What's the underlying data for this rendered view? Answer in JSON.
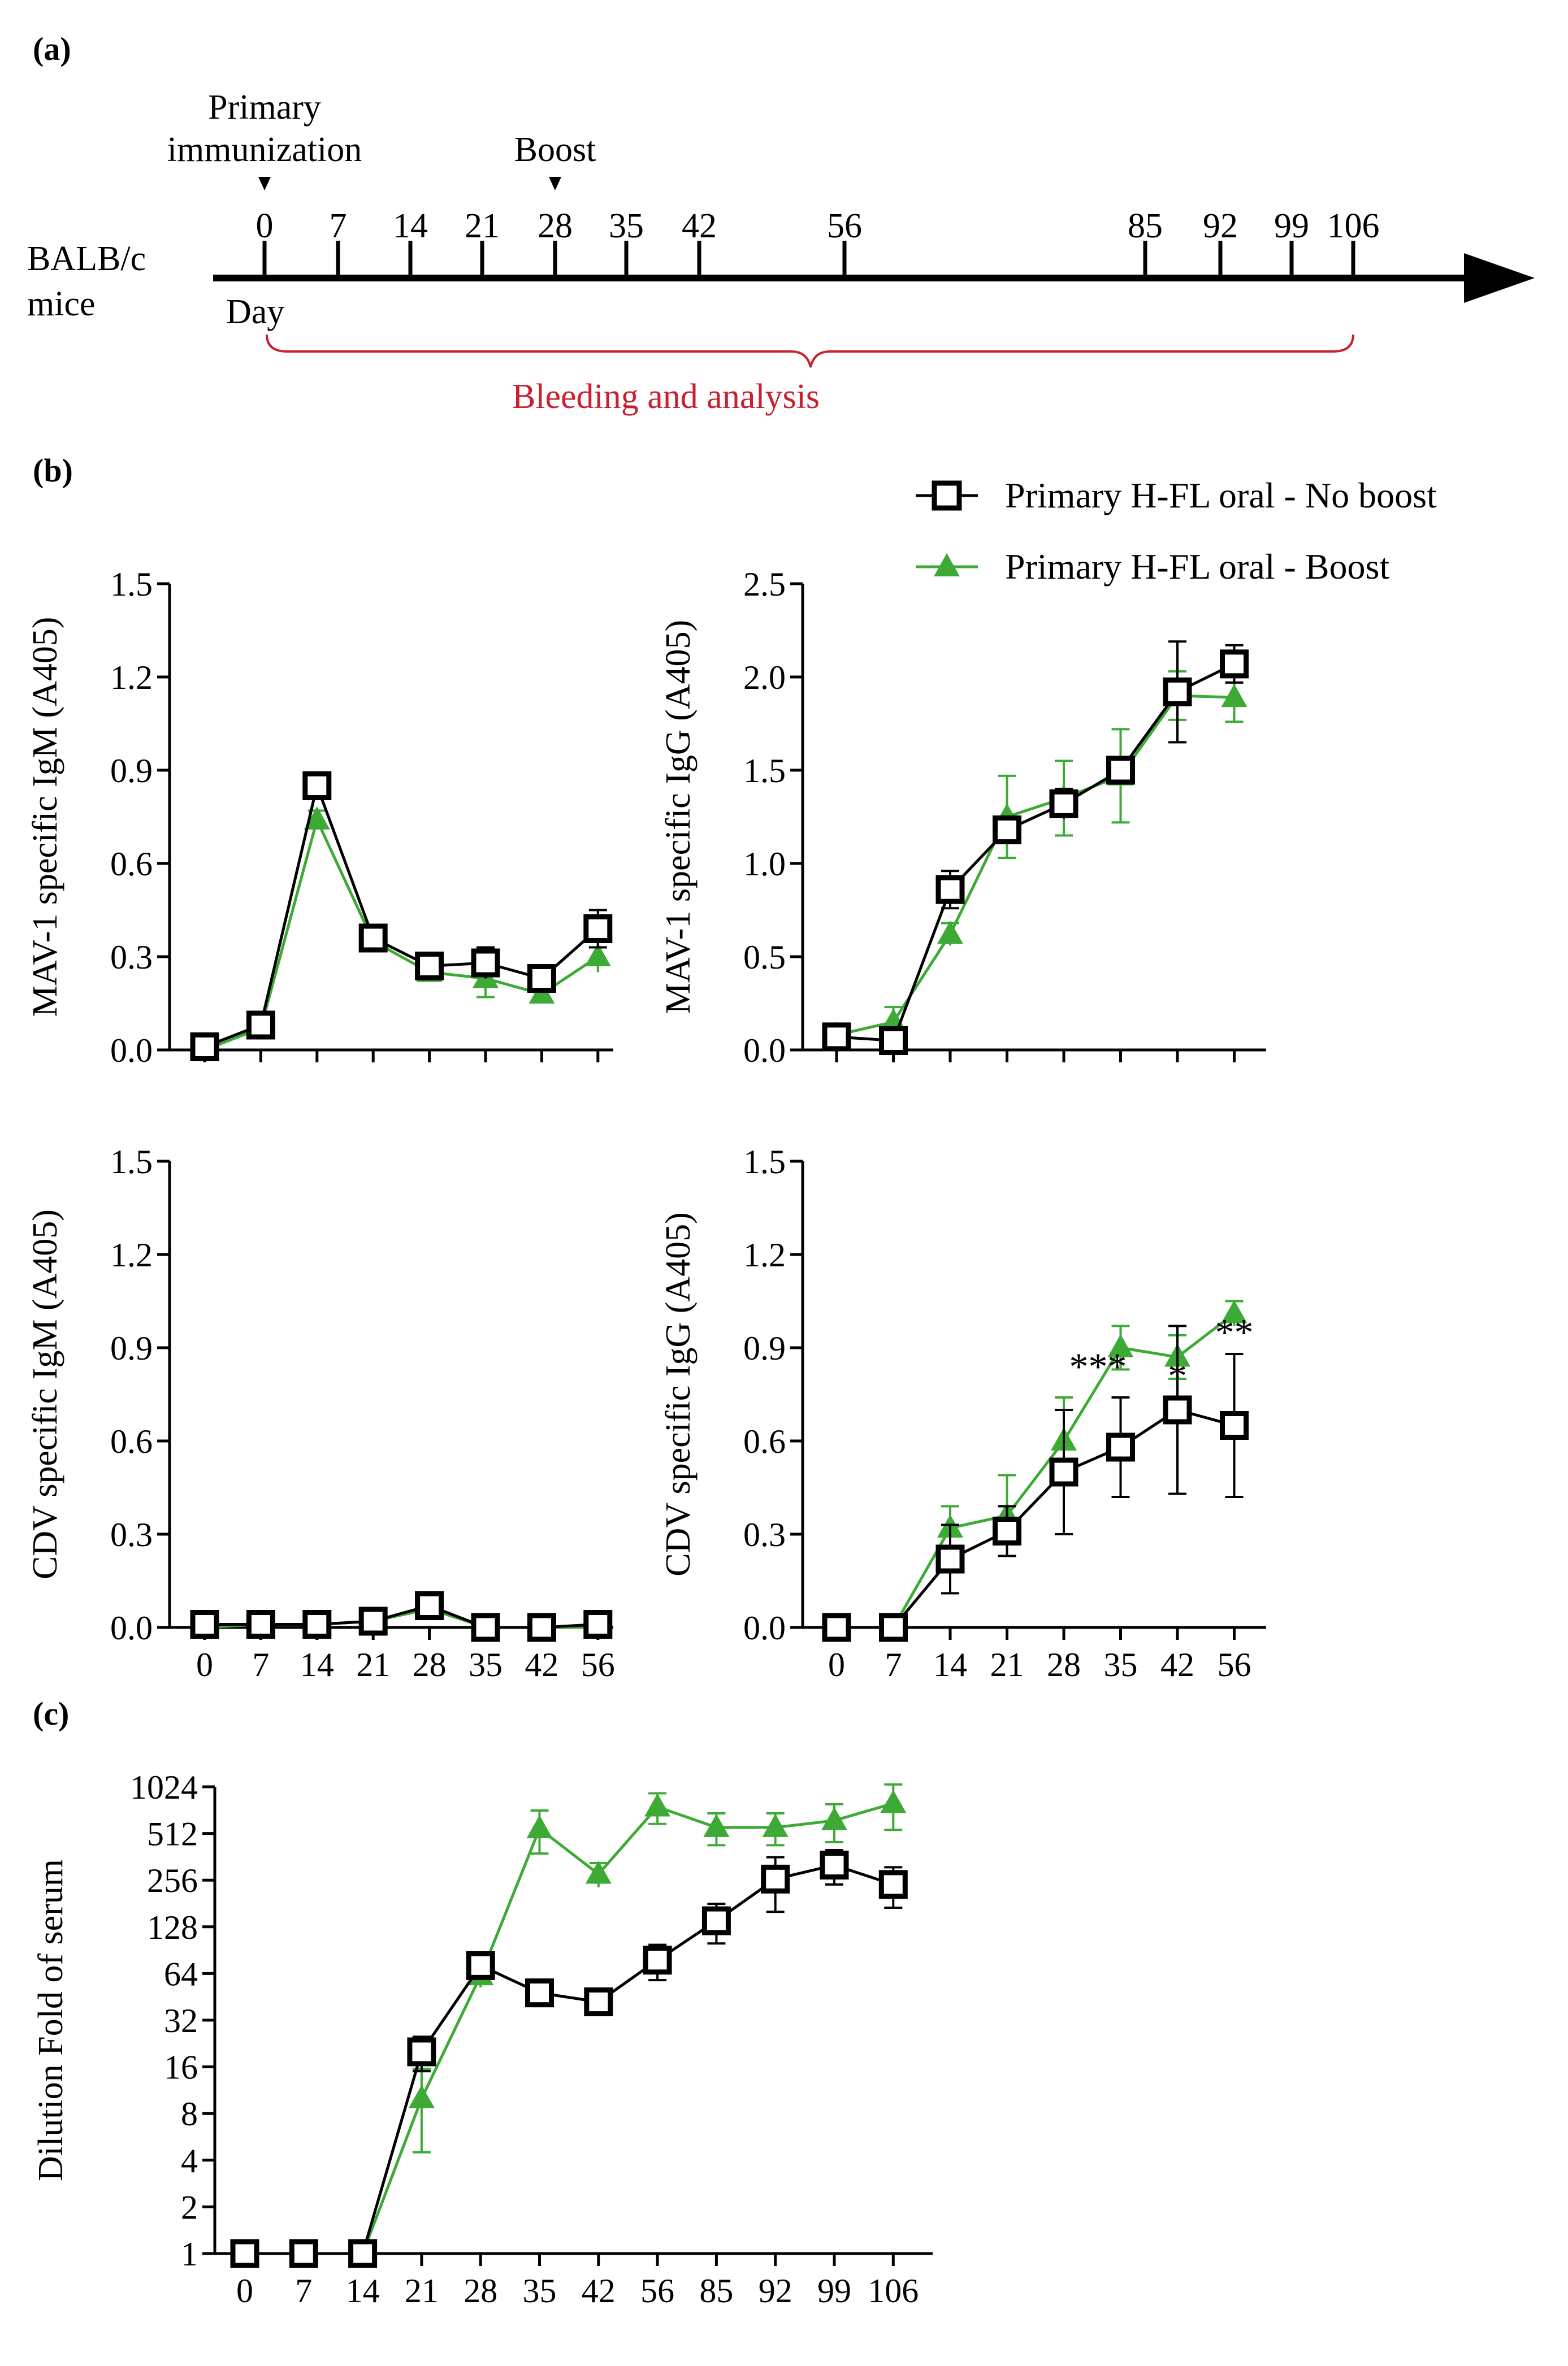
{
  "colors": {
    "no_boost": "#000000",
    "boost": "#3DAA35",
    "bracket": "#C8202E",
    "axis": "#000000"
  },
  "panel_labels": {
    "a": "(a)",
    "b": "(b)",
    "c": "(c)"
  },
  "timeline": {
    "subject_line1": "BALB/c",
    "subject_line2": "mice",
    "day_label": "Day",
    "primary_line1": "Primary",
    "primary_line2": "immunization",
    "boost_label": "Boost",
    "bleed_label": "Bleeding and analysis",
    "days": [
      0,
      7,
      14,
      21,
      28,
      35,
      42,
      56,
      85,
      92,
      99,
      106
    ]
  },
  "legend": {
    "no_boost": "Primary H-FL oral - No boost",
    "boost": "Primary H-FL oral - Boost"
  },
  "chart_data": [
    {
      "id": "mav-igm",
      "type": "line",
      "ylabel": "MAV-1 specific IgM (A405)",
      "categories": [
        "0",
        "7",
        "14",
        "21",
        "28",
        "35",
        "42",
        "56"
      ],
      "ylim": [
        0,
        1.5
      ],
      "yticks": [
        "0.0",
        "0.3",
        "0.6",
        "0.9",
        "1.2",
        "1.5"
      ],
      "show_xlabels": false,
      "series": [
        {
          "name": "Primary H-FL oral - No boost",
          "values": [
            0.01,
            0.08,
            0.85,
            0.36,
            0.27,
            0.28,
            0.23,
            0.39
          ],
          "errors": [
            0.01,
            0.04,
            0.04,
            0.03,
            0.04,
            0.05,
            0.03,
            0.06
          ]
        },
        {
          "name": "Primary H-FL oral - Boost",
          "values": [
            0.0,
            0.07,
            0.74,
            0.35,
            0.25,
            0.23,
            0.18,
            0.3
          ],
          "errors": [
            0.0,
            0.03,
            0.03,
            0.03,
            0.03,
            0.06,
            0.02,
            0.05
          ]
        }
      ]
    },
    {
      "id": "mav-igg",
      "type": "line",
      "ylabel": "MAV-1 specific IgG (A405)",
      "categories": [
        "0",
        "7",
        "14",
        "21",
        "28",
        "35",
        "42",
        "56"
      ],
      "ylim": [
        0,
        2.5
      ],
      "yticks": [
        "0.0",
        "0.5",
        "1.0",
        "1.5",
        "2.0",
        "2.5"
      ],
      "show_xlabels": false,
      "series": [
        {
          "name": "Primary H-FL oral - No boost",
          "values": [
            0.07,
            0.05,
            0.86,
            1.18,
            1.32,
            1.5,
            1.92,
            2.07
          ],
          "errors": [
            0.02,
            0.02,
            0.1,
            0.06,
            0.08,
            0.05,
            0.27,
            0.1
          ]
        },
        {
          "name": "Primary H-FL oral - Boost",
          "values": [
            0.08,
            0.15,
            0.62,
            1.25,
            1.35,
            1.47,
            1.9,
            1.89
          ],
          "errors": [
            0.02,
            0.08,
            0.06,
            0.22,
            0.2,
            0.25,
            0.13,
            0.13
          ]
        }
      ]
    },
    {
      "id": "cdv-igm",
      "type": "line",
      "ylabel": "CDV specific IgM (A405)",
      "categories": [
        "0",
        "7",
        "14",
        "21",
        "28",
        "35",
        "42",
        "56"
      ],
      "ylim": [
        0,
        1.5
      ],
      "yticks": [
        "0.0",
        "0.3",
        "0.6",
        "0.9",
        "1.2",
        "1.5"
      ],
      "show_xlabels": true,
      "series": [
        {
          "name": "Primary H-FL oral - No boost",
          "values": [
            0.01,
            0.01,
            0.01,
            0.02,
            0.07,
            0.0,
            0.0,
            0.01
          ],
          "errors": [
            0.0,
            0.0,
            0.01,
            0.01,
            0.04,
            0.0,
            0.0,
            0.01
          ]
        },
        {
          "name": "Primary H-FL oral - Boost",
          "values": [
            0.0,
            0.01,
            0.01,
            0.02,
            0.06,
            0.0,
            0.0,
            0.0
          ],
          "errors": [
            0.0,
            0.0,
            0.01,
            0.01,
            0.03,
            0.0,
            0.0,
            0.0
          ]
        }
      ]
    },
    {
      "id": "cdv-igg",
      "type": "line",
      "ylabel": "CDV specific IgG (A405)",
      "categories": [
        "0",
        "7",
        "14",
        "21",
        "28",
        "35",
        "42",
        "56"
      ],
      "ylim": [
        0,
        1.5
      ],
      "yticks": [
        "0.0",
        "0.3",
        "0.6",
        "0.9",
        "1.2",
        "1.5"
      ],
      "show_xlabels": true,
      "significance": [
        "",
        "",
        "",
        "",
        "",
        "***",
        "*",
        "**"
      ],
      "series": [
        {
          "name": "Primary H-FL oral - No boost",
          "values": [
            0.0,
            0.0,
            0.22,
            0.31,
            0.5,
            0.58,
            0.7,
            0.65
          ],
          "errors": [
            0.0,
            0.0,
            0.11,
            0.08,
            0.2,
            0.16,
            0.27,
            0.23
          ]
        },
        {
          "name": "Primary H-FL oral - Boost",
          "values": [
            0.0,
            0.0,
            0.32,
            0.36,
            0.6,
            0.9,
            0.87,
            1.01
          ],
          "errors": [
            0.0,
            0.0,
            0.07,
            0.13,
            0.14,
            0.07,
            0.07,
            0.04
          ]
        }
      ]
    },
    {
      "id": "dilution",
      "type": "line",
      "ylabel": "Dilution Fold of serum",
      "yscale": "log2",
      "categories": [
        "0",
        "7",
        "14",
        "21",
        "28",
        "35",
        "42",
        "56",
        "85",
        "92",
        "99",
        "106"
      ],
      "ylim": [
        1,
        1024
      ],
      "yticks": [
        "1",
        "2",
        "4",
        "8",
        "16",
        "32",
        "64",
        "128",
        "256",
        "512",
        "1024"
      ],
      "show_xlabels": true,
      "series": [
        {
          "name": "Primary H-FL oral - No boost",
          "values": [
            1,
            1,
            1,
            20,
            72,
            48,
            42,
            78,
            140,
            260,
            320,
            240
          ],
          "errors": [
            0,
            0,
            0,
            5,
            10,
            8,
            8,
            20,
            40,
            100,
            80,
            70
          ]
        },
        {
          "name": "Primary H-FL oral - Boost",
          "values": [
            1,
            1,
            1,
            10,
            62,
            550,
            280,
            760,
            560,
            560,
            620,
            800
          ],
          "errors": [
            0,
            0,
            0,
            5.5,
            10,
            170,
            50,
            170,
            130,
            130,
            170,
            260
          ]
        }
      ]
    }
  ]
}
